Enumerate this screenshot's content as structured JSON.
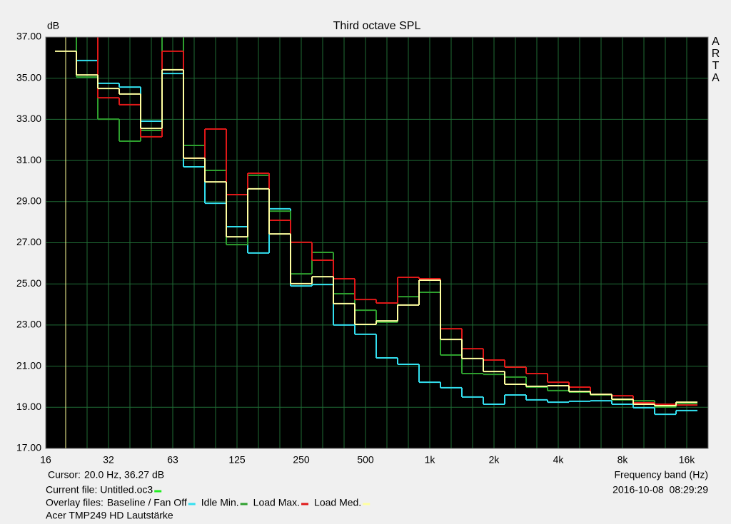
{
  "chart_data": {
    "type": "step",
    "title": "Third octave SPL",
    "y_label": "dB",
    "x_label": "Frequency band (Hz)",
    "watermark": "ARTA",
    "background": "#000000",
    "grid": true,
    "grid_color": "#1f6b35",
    "categories": [
      "16",
      null,
      null,
      "32",
      null,
      null,
      "63",
      null,
      null,
      "125",
      null,
      null,
      "250",
      null,
      null,
      "500",
      null,
      null,
      "1k",
      null,
      null,
      "2k",
      null,
      null,
      "4k",
      null,
      null,
      "8k",
      null,
      null,
      "16k"
    ],
    "ylim": [
      17,
      37
    ],
    "yticks": [
      {
        "value": 17,
        "label": "17.00"
      },
      {
        "value": 19,
        "label": "19.00"
      },
      {
        "value": 21,
        "label": "21.00"
      },
      {
        "value": 23,
        "label": "23.00"
      },
      {
        "value": 25,
        "label": "25.00"
      },
      {
        "value": 27,
        "label": "27.00"
      },
      {
        "value": 29,
        "label": "29.00"
      },
      {
        "value": 31,
        "label": "31.00"
      },
      {
        "value": 33,
        "label": "33.00"
      },
      {
        "value": 35,
        "label": "35.00"
      },
      {
        "value": 37,
        "label": "37.00"
      }
    ],
    "series": [
      {
        "name": "Baseline / Fan Off",
        "color": "#33e0f0",
        "values": [
          null,
          38,
          35.86,
          34.75,
          34.57,
          32.91,
          35.23,
          30.69,
          28.92,
          27.78,
          26.5,
          28.65,
          24.9,
          24.97,
          23.0,
          22.55,
          21.4,
          21.09,
          20.22,
          19.95,
          19.5,
          19.15,
          19.6,
          19.36,
          19.25,
          19.29,
          19.32,
          19.15,
          18.98,
          18.66,
          18.84
        ]
      },
      {
        "name": "Idle Min.",
        "color": "#2ea02e",
        "values": [
          null,
          38,
          35.06,
          33.01,
          31.94,
          32.46,
          38,
          31.73,
          30.52,
          26.91,
          30.28,
          28.54,
          25.49,
          26.53,
          24.52,
          23.72,
          23.14,
          24.38,
          24.59,
          21.54,
          20.64,
          20.6,
          20.47,
          19.98,
          19.81,
          19.74,
          19.6,
          19.36,
          19.32,
          19.01,
          19.18
        ]
      },
      {
        "name": "Load Max.",
        "color": "#e01818",
        "values": [
          null,
          38,
          38,
          34.05,
          33.71,
          32.15,
          36.31,
          31.11,
          32.53,
          29.34,
          30.38,
          28.09,
          27.02,
          26.15,
          25.25,
          24.24,
          24.07,
          25.32,
          25.25,
          22.82,
          21.85,
          21.3,
          20.95,
          20.64,
          20.22,
          19.98,
          19.63,
          19.56,
          19.22,
          19.15,
          19.11
        ]
      },
      {
        "name": "Load Med.",
        "color": "#ffffa0",
        "values": [
          null,
          36.31,
          35.16,
          34.5,
          34.23,
          32.56,
          35.41,
          31.11,
          29.96,
          27.29,
          29.62,
          27.43,
          25.01,
          25.35,
          24.04,
          23.03,
          23.2,
          23.97,
          25.18,
          22.3,
          21.37,
          20.74,
          20.12,
          20.02,
          20.05,
          19.77,
          19.63,
          19.39,
          19.15,
          19.08,
          19.25
        ]
      }
    ]
  },
  "footer": {
    "cursor_label": "Cursor:",
    "cursor_value": "20.0 Hz, 36.27 dB",
    "current_file": "Current file: Untitled.oc3",
    "current_color": "#22ee22",
    "overlay_label": "Overlay files:",
    "timestamp": "2016-10-08  08:29:29",
    "caption": "Acer TMP249 HD Lautstärke"
  }
}
